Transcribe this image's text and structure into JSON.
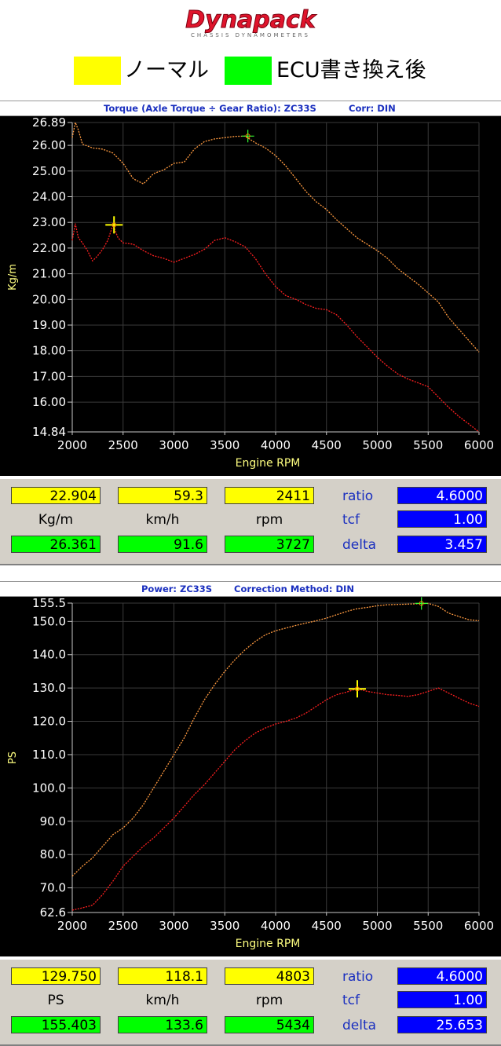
{
  "logo": {
    "brand": "Dynapack",
    "tagline": "CHASSIS DYNAMOMETERS"
  },
  "legend": [
    {
      "label": "ノーマル",
      "color": "#ffff00"
    },
    {
      "label": "ECU書き換え後",
      "color": "#00ff00"
    }
  ],
  "colors": {
    "normal_curve": "#ff2020",
    "tuned_curve": "#ff9a40",
    "plot_bg": "#000000",
    "grid": "#3a3a3a",
    "axis_text": "#ffff80",
    "title_text": "#1a2fbf"
  },
  "charts": [
    {
      "titles": [
        "Torque (Axle Torque ÷ Gear Ratio): ZC33S",
        "Corr: DIN"
      ],
      "readout": {
        "row1": [
          "22.904",
          "59.3",
          "2411"
        ],
        "units": [
          "Kg/m",
          "km/h",
          "rpm"
        ],
        "row2": [
          "26.361",
          "91.6",
          "3727"
        ],
        "right_labels": [
          "ratio",
          "tcf",
          "delta"
        ],
        "right_values": [
          "4.6000",
          "1.00",
          "3.457"
        ]
      }
    },
    {
      "titles": [
        "Power: ZC33S",
        "Correction Method: DIN"
      ],
      "readout": {
        "row1": [
          "129.750",
          "118.1",
          "4803"
        ],
        "units": [
          "PS",
          "km/h",
          "rpm"
        ],
        "row2": [
          "155.403",
          "133.6",
          "5434"
        ],
        "right_labels": [
          "ratio",
          "tcf",
          "delta"
        ],
        "right_values": [
          "4.6000",
          "1.00",
          "25.653"
        ]
      }
    }
  ],
  "chart_data": [
    {
      "type": "line",
      "xlabel": "Engine RPM",
      "ylabel": "Kg/m",
      "xlim": [
        2000,
        6000
      ],
      "ylim": [
        14.84,
        26.89
      ],
      "xticks": [
        "2000",
        "2500",
        "3000",
        "3500",
        "4000",
        "4500",
        "5000",
        "5500",
        "6000"
      ],
      "yticks": [
        "26.89",
        "26.00",
        "25.00",
        "24.00",
        "23.00",
        "22.00",
        "21.00",
        "20.00",
        "19.00",
        "18.00",
        "17.00",
        "16.00",
        "14.84"
      ],
      "grid": true,
      "series": [
        {
          "x": [
            2000,
            2030,
            2060,
            2100,
            2150,
            2200,
            2250,
            2300,
            2350,
            2400,
            2450,
            2500,
            2600,
            2700,
            2800,
            2900,
            3000,
            3100,
            3200,
            3300,
            3400,
            3500,
            3600,
            3700,
            3800,
            3900,
            4000,
            4100,
            4200,
            4300,
            4400,
            4500,
            4600,
            4700,
            4800,
            4900,
            5000,
            5100,
            5200,
            5300,
            5400,
            5500,
            5600,
            5700,
            5800,
            5900,
            6000
          ],
          "values": [
            22.3,
            22.95,
            22.4,
            22.2,
            21.9,
            21.5,
            21.7,
            21.95,
            22.3,
            22.9,
            22.4,
            22.2,
            22.15,
            21.9,
            21.7,
            21.6,
            21.45,
            21.6,
            21.75,
            21.95,
            22.3,
            22.4,
            22.25,
            22.05,
            21.6,
            21.0,
            20.5,
            20.15,
            20.0,
            19.8,
            19.65,
            19.6,
            19.4,
            19.0,
            18.55,
            18.15,
            17.75,
            17.4,
            17.1,
            16.9,
            16.75,
            16.6,
            16.2,
            15.8,
            15.45,
            15.15,
            14.84
          ]
        },
        {
          "x": [
            2000,
            2030,
            2060,
            2100,
            2200,
            2300,
            2400,
            2500,
            2600,
            2700,
            2800,
            2900,
            3000,
            3100,
            3200,
            3300,
            3400,
            3500,
            3600,
            3700,
            3800,
            3900,
            4000,
            4100,
            4200,
            4300,
            4400,
            4500,
            4600,
            4700,
            4800,
            4900,
            5000,
            5100,
            5200,
            5300,
            5400,
            5500,
            5600,
            5700,
            5800,
            5900,
            6000
          ],
          "values": [
            26.3,
            26.89,
            26.6,
            26.05,
            25.9,
            25.85,
            25.7,
            25.3,
            24.7,
            24.5,
            24.9,
            25.05,
            25.3,
            25.35,
            25.85,
            26.15,
            26.25,
            26.3,
            26.35,
            26.36,
            26.1,
            25.9,
            25.6,
            25.2,
            24.7,
            24.2,
            23.8,
            23.5,
            23.1,
            22.75,
            22.4,
            22.15,
            21.9,
            21.6,
            21.2,
            20.9,
            20.6,
            20.25,
            19.9,
            19.3,
            18.85,
            18.4,
            17.95
          ]
        }
      ],
      "cursors": [
        {
          "x": 2411,
          "y": 22.904
        },
        {
          "x": 3727,
          "y": 26.361
        }
      ]
    },
    {
      "type": "line",
      "xlabel": "Engine RPM",
      "ylabel": "PS",
      "xlim": [
        2000,
        6000
      ],
      "ylim": [
        62.6,
        155.5
      ],
      "xticks": [
        "2000",
        "2500",
        "3000",
        "3500",
        "4000",
        "4500",
        "5000",
        "5500",
        "6000"
      ],
      "yticks": [
        "155.5",
        "150.0",
        "140.0",
        "130.0",
        "120.0",
        "110.0",
        "100.0",
        "90.0",
        "80.0",
        "70.0",
        "62.6"
      ],
      "grid": true,
      "series": [
        {
          "x": [
            2000,
            2100,
            2200,
            2300,
            2400,
            2500,
            2600,
            2700,
            2800,
            2900,
            3000,
            3100,
            3200,
            3300,
            3400,
            3500,
            3600,
            3700,
            3800,
            3900,
            4000,
            4100,
            4200,
            4300,
            4400,
            4500,
            4600,
            4700,
            4800,
            4900,
            5000,
            5100,
            5200,
            5300,
            5400,
            5500,
            5600,
            5700,
            5800,
            5900,
            6000
          ],
          "values": [
            63.3,
            64.0,
            64.8,
            68.0,
            72.0,
            76.5,
            79.5,
            82.5,
            85.0,
            88.0,
            91.0,
            94.5,
            98.0,
            101.0,
            104.5,
            108.0,
            111.5,
            114.2,
            116.5,
            118.0,
            119.2,
            120.0,
            121.0,
            122.5,
            124.5,
            126.5,
            128.0,
            128.8,
            129.8,
            129.0,
            128.5,
            128.0,
            127.8,
            127.5,
            128.0,
            129.0,
            130.0,
            128.5,
            127.0,
            125.5,
            124.5
          ]
        },
        {
          "x": [
            2000,
            2100,
            2200,
            2300,
            2400,
            2500,
            2600,
            2700,
            2800,
            2900,
            3000,
            3100,
            3200,
            3300,
            3400,
            3500,
            3600,
            3700,
            3800,
            3900,
            4000,
            4100,
            4200,
            4300,
            4400,
            4500,
            4600,
            4700,
            4800,
            4900,
            5000,
            5100,
            5200,
            5300,
            5400,
            5500,
            5600,
            5700,
            5800,
            5900,
            6000
          ],
          "values": [
            73.5,
            76.5,
            79.0,
            82.5,
            86.0,
            88.0,
            91.0,
            95.0,
            100.0,
            105.0,
            110.0,
            115.0,
            121.0,
            126.5,
            131.0,
            135.0,
            138.5,
            141.5,
            144.0,
            146.0,
            147.2,
            148.0,
            148.8,
            149.5,
            150.2,
            151.0,
            152.0,
            153.0,
            153.8,
            154.2,
            154.7,
            155.0,
            155.1,
            155.2,
            155.3,
            155.4,
            154.5,
            152.5,
            151.5,
            150.5,
            150.2
          ]
        }
      ],
      "cursors": [
        {
          "x": 4803,
          "y": 129.75
        },
        {
          "x": 5434,
          "y": 155.403
        }
      ]
    }
  ]
}
